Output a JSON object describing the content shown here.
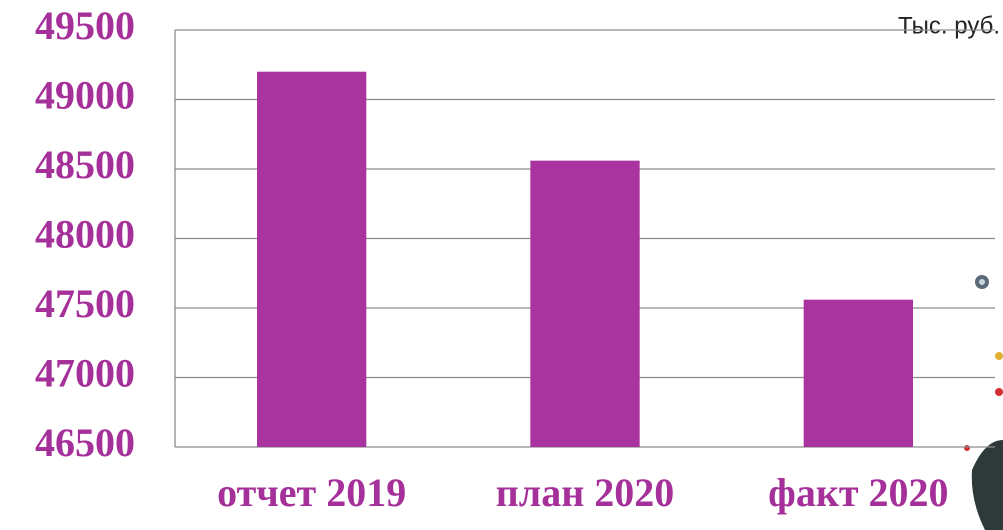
{
  "chart_data": {
    "type": "bar",
    "unit_label": "Тыс. руб.",
    "categories": [
      "отчет 2019",
      "план 2020",
      "факт 2020"
    ],
    "values": [
      49200,
      48560,
      47560
    ],
    "color": "#a9339f",
    "ylim": [
      46500,
      49500
    ],
    "yticks": [
      46500,
      47000,
      47500,
      48000,
      48500,
      49000,
      49500
    ],
    "grid": true
  }
}
